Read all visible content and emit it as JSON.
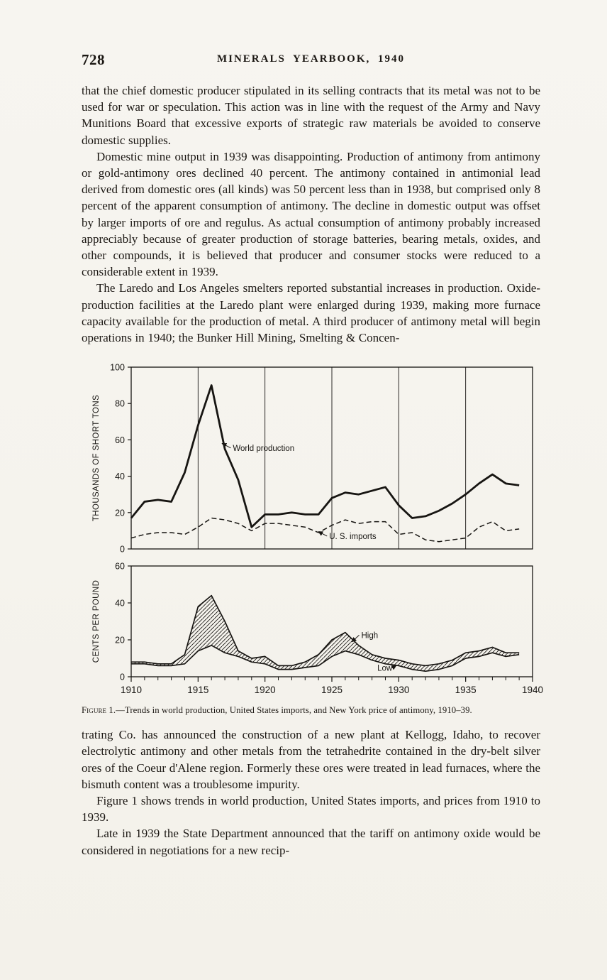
{
  "header": {
    "page_number": "728",
    "title": "MINERALS YEARBOOK, 1940"
  },
  "body_text": {
    "before": [
      "that the chief domestic producer stipulated in its selling contracts that its metal was not to be used for war or speculation.  This action was in line with the request of the Army and Navy Munitions Board that excessive exports of strategic raw materials be avoided to conserve domestic supplies.",
      "Domestic mine output in 1939 was disappointing.  Production of antimony from antimony or gold-antimony ores declined 40 percent.  The antimony contained in antimonial lead derived from domestic ores (all kinds) was 50 percent less than in 1938, but comprised only 8 percent of the apparent consumption of antimony.  The decline in domestic output was offset by larger imports of ore and regulus.  As actual consumption of antimony probably increased appreciably because of greater production of storage batteries, bearing metals, oxides, and other compounds, it is believed that producer and consumer stocks were reduced to a considerable extent in 1939.",
      "The Laredo and Los Angeles smelters reported substantial increases in production.  Oxide-production facilities at the Laredo plant were enlarged during 1939, making more furnace capacity available for the production of metal.  A third producer of antimony metal will begin operations in 1940; the Bunker Hill Mining, Smelting & Concen-"
    ],
    "after": [
      "trating Co. has announced the construction of a new plant at Kellogg, Idaho, to recover electrolytic antimony and other metals from the tetrahedrite contained in the dry-belt silver ores of the Coeur d'Alene region.  Formerly these ores were treated in lead furnaces, where the bismuth content was a troublesome impurity.",
      "Figure 1 shows trends in world production, United States imports, and prices from 1910 to 1939.",
      "Late in 1939 the State Department announced that the tariff on antimony oxide would be considered in negotiations for a new recip-"
    ]
  },
  "figure": {
    "caption_label": "Figure 1.",
    "caption_text": "—Trends in world production, United States imports, and New York price of antimony, 1910–39."
  },
  "chart_data": [
    {
      "type": "line",
      "ylabel": "THOUSANDS OF SHORT TONS",
      "xlabel": "",
      "ylim": [
        0,
        100
      ],
      "yticks": [
        0,
        20,
        40,
        60,
        80,
        100
      ],
      "xlim": [
        1910,
        1940
      ],
      "xticks": [
        1910,
        1915,
        1920,
        1925,
        1930,
        1935,
        1940
      ],
      "grid": "vertical-5yr",
      "band": false,
      "x": [
        1910,
        1911,
        1912,
        1913,
        1914,
        1915,
        1916,
        1917,
        1918,
        1919,
        1920,
        1921,
        1922,
        1923,
        1924,
        1925,
        1926,
        1927,
        1928,
        1929,
        1930,
        1931,
        1932,
        1933,
        1934,
        1935,
        1936,
        1937,
        1938,
        1939
      ],
      "series": [
        {
          "name": "World production",
          "style": "solid-bold",
          "values": [
            17,
            26,
            27,
            26,
            42,
            68,
            90,
            55,
            38,
            12,
            19,
            19,
            20,
            19,
            19,
            28,
            31,
            30,
            32,
            34,
            24,
            17,
            18,
            21,
            25,
            30,
            36,
            41,
            36,
            35
          ]
        },
        {
          "name": "U. S. imports",
          "style": "dashed",
          "values": [
            6,
            8,
            9,
            9,
            8,
            12,
            17,
            16,
            14,
            10,
            14,
            14,
            13,
            12,
            9,
            13,
            16,
            14,
            15,
            15,
            8,
            9,
            5,
            4,
            5,
            6,
            12,
            15,
            10,
            11
          ]
        }
      ],
      "annotations": [
        {
          "text": "World production",
          "label_year": 1917.6,
          "label_value": 54,
          "point_year": 1916.8,
          "point_value": 58
        },
        {
          "text": "U. S. imports",
          "label_year": 1924.8,
          "label_value": 5.5,
          "point_year": 1924.0,
          "point_value": 9.5
        }
      ]
    },
    {
      "type": "line",
      "ylabel": "CENTS PER POUND",
      "xlabel": "",
      "ylim": [
        0,
        60
      ],
      "yticks": [
        0,
        20,
        40,
        60
      ],
      "xlim": [
        1910,
        1940
      ],
      "xticks": [
        1910,
        1915,
        1920,
        1925,
        1930,
        1935,
        1940
      ],
      "grid": "none",
      "band": true,
      "band_fill": "hatched",
      "x": [
        1910,
        1911,
        1912,
        1913,
        1914,
        1915,
        1916,
        1917,
        1918,
        1919,
        1920,
        1921,
        1922,
        1923,
        1924,
        1925,
        1926,
        1927,
        1928,
        1929,
        1930,
        1931,
        1932,
        1933,
        1934,
        1935,
        1936,
        1937,
        1938,
        1939
      ],
      "series": [
        {
          "name": "High",
          "style": "solid",
          "values": [
            8,
            8,
            7,
            7,
            12,
            38,
            44,
            30,
            14,
            10,
            11,
            6,
            6,
            8,
            12,
            20,
            24,
            17,
            12,
            10,
            9,
            7,
            6,
            7,
            9,
            13,
            14,
            16,
            13,
            13
          ]
        },
        {
          "name": "Low",
          "style": "solid",
          "values": [
            7,
            7,
            6,
            6,
            7,
            14,
            17,
            13,
            11,
            8,
            7,
            4,
            4,
            5,
            6,
            11,
            14,
            12,
            9,
            7,
            6,
            4,
            3,
            4,
            6,
            10,
            11,
            13,
            11,
            12
          ]
        }
      ],
      "annotations": [
        {
          "text": "High",
          "label_year": 1927.2,
          "label_value": 21,
          "point_year": 1926.5,
          "point_value": 19
        },
        {
          "text": "Low",
          "label_year": 1928.4,
          "label_value": 3.2,
          "point_year": 1929.8,
          "point_value": 6
        }
      ]
    }
  ]
}
